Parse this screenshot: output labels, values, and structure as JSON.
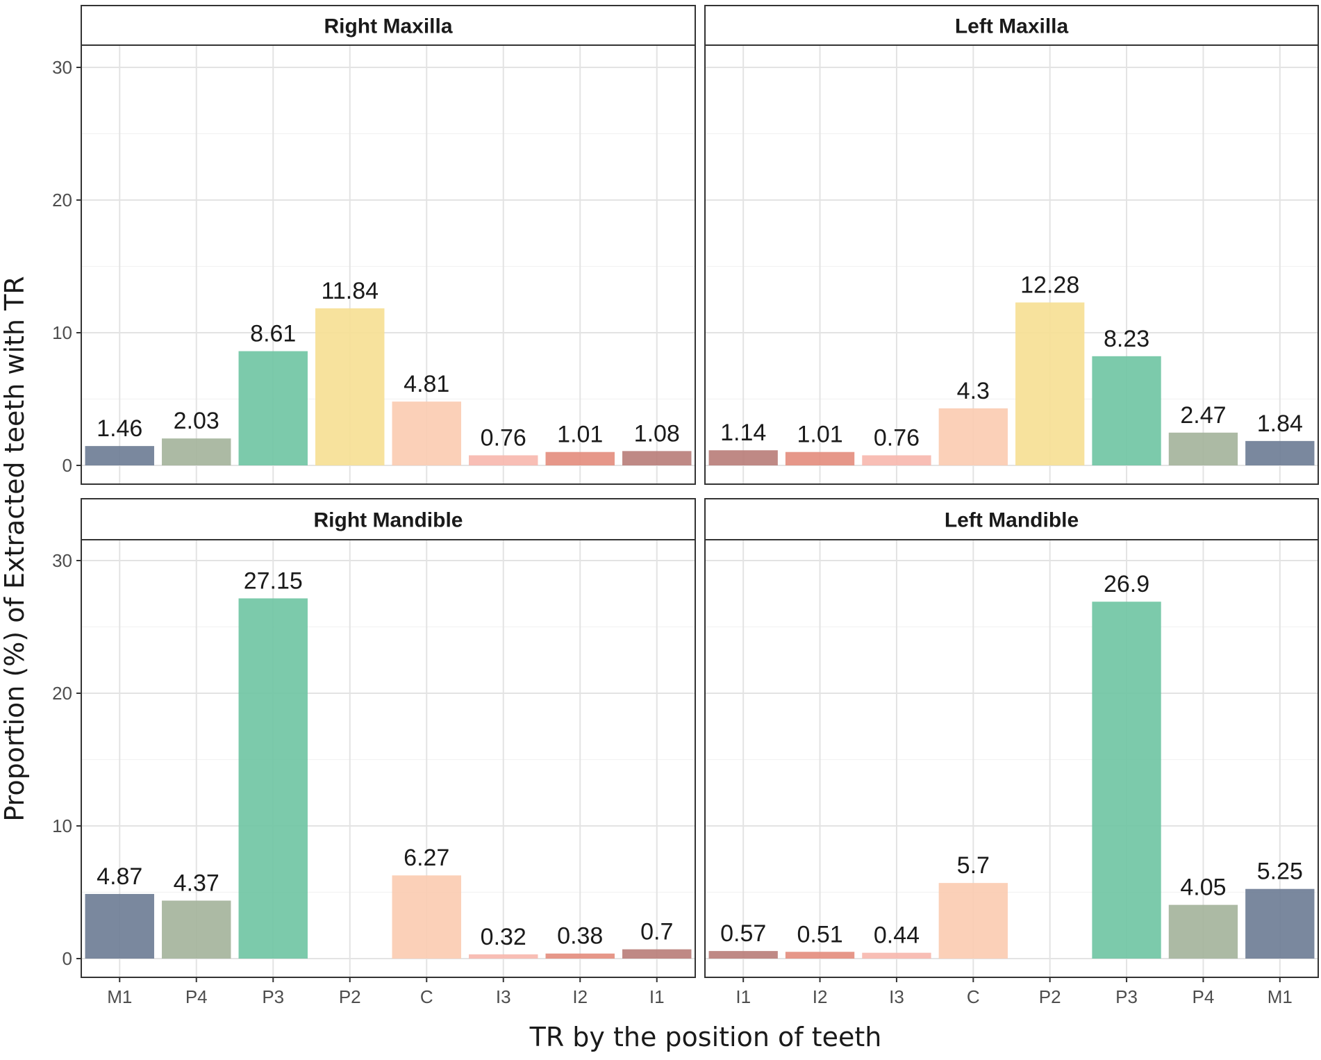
{
  "chart_data": {
    "type": "bar",
    "xlabel": "TR by the position of teeth",
    "ylabel": "Proportion (%) of Extracted teeth with TR",
    "ylim": [
      0,
      32
    ],
    "yticks": [
      0,
      10,
      20,
      30
    ],
    "grid": true,
    "colors": {
      "M1": "#6b7b93",
      "P4": "#a3b29a",
      "P3": "#6ec4a2",
      "P2": "#f6df92",
      "C": "#fbcbb0",
      "I3": "#f7b7ad",
      "I2": "#e38c7c",
      "I1": "#b87c78"
    },
    "panels": [
      {
        "title": "Right Maxilla",
        "categories": [
          "M1",
          "P4",
          "P3",
          "P2",
          "C",
          "I3",
          "I2",
          "I1"
        ],
        "values": [
          1.46,
          2.03,
          8.61,
          11.84,
          4.81,
          0.76,
          1.01,
          1.08
        ],
        "labels": [
          "1.46",
          "2.03",
          "8.61",
          "11.84",
          "4.81",
          "0.76",
          "1.01",
          "1.08"
        ]
      },
      {
        "title": "Left Maxilla",
        "categories": [
          "I1",
          "I2",
          "I3",
          "C",
          "P2",
          "P3",
          "P4",
          "M1"
        ],
        "values": [
          1.14,
          1.01,
          0.76,
          4.3,
          12.28,
          8.23,
          2.47,
          1.84
        ],
        "labels": [
          "1.14",
          "1.01",
          "0.76",
          "4.3",
          "12.28",
          "8.23",
          "2.47",
          "1.84"
        ]
      },
      {
        "title": "Right Mandible",
        "categories": [
          "M1",
          "P4",
          "P3",
          "P2",
          "C",
          "I3",
          "I2",
          "I1"
        ],
        "values": [
          4.87,
          4.37,
          27.15,
          null,
          6.27,
          0.32,
          0.38,
          0.7
        ],
        "labels": [
          "4.87",
          "4.37",
          "27.15",
          null,
          "6.27",
          "0.32",
          "0.38",
          "0.7"
        ]
      },
      {
        "title": "Left Mandible",
        "categories": [
          "I1",
          "I2",
          "I3",
          "C",
          "P2",
          "P3",
          "P4",
          "M1"
        ],
        "values": [
          0.57,
          0.51,
          0.44,
          5.7,
          null,
          26.9,
          4.05,
          5.25
        ],
        "labels": [
          "0.57",
          "0.51",
          "0.44",
          "5.7",
          null,
          "26.9",
          "4.05",
          "5.25"
        ]
      }
    ]
  }
}
